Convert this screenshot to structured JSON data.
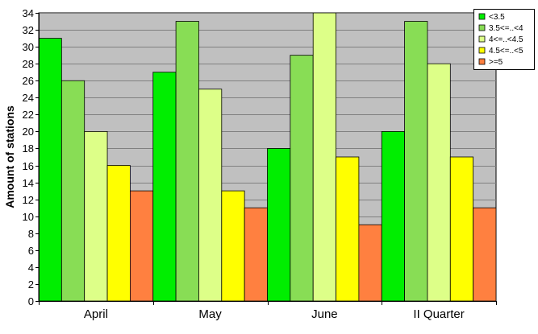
{
  "chart_data": {
    "type": "bar",
    "ylabel": "Amount of stations",
    "xlabel": "",
    "title": "",
    "ylim": [
      0,
      34
    ],
    "yticks": [
      0,
      2,
      4,
      6,
      8,
      10,
      12,
      14,
      16,
      18,
      20,
      22,
      24,
      26,
      28,
      30,
      32,
      34
    ],
    "grid": true,
    "legend_position": "top-right",
    "categories": [
      "April",
      "May",
      "June",
      "II Quarter"
    ],
    "series": [
      {
        "name": "<3.5",
        "color": "#00ee00",
        "values": [
          31,
          27,
          18,
          20
        ]
      },
      {
        "name": "3.5<=..<4",
        "color": "#88dd55",
        "values": [
          26,
          33,
          29,
          33
        ]
      },
      {
        "name": "4<=..<4.5",
        "color": "#ddff88",
        "values": [
          20,
          25,
          34,
          28
        ]
      },
      {
        "name": "4.5<=..<5",
        "color": "#ffff00",
        "values": [
          16,
          13,
          17,
          17
        ]
      },
      {
        "name": ">=5",
        "color": "#ff8040",
        "values": [
          13,
          11,
          9,
          11
        ]
      }
    ]
  },
  "colors": {
    "plot_background": "#c0c0c0",
    "grid": "#808080"
  }
}
